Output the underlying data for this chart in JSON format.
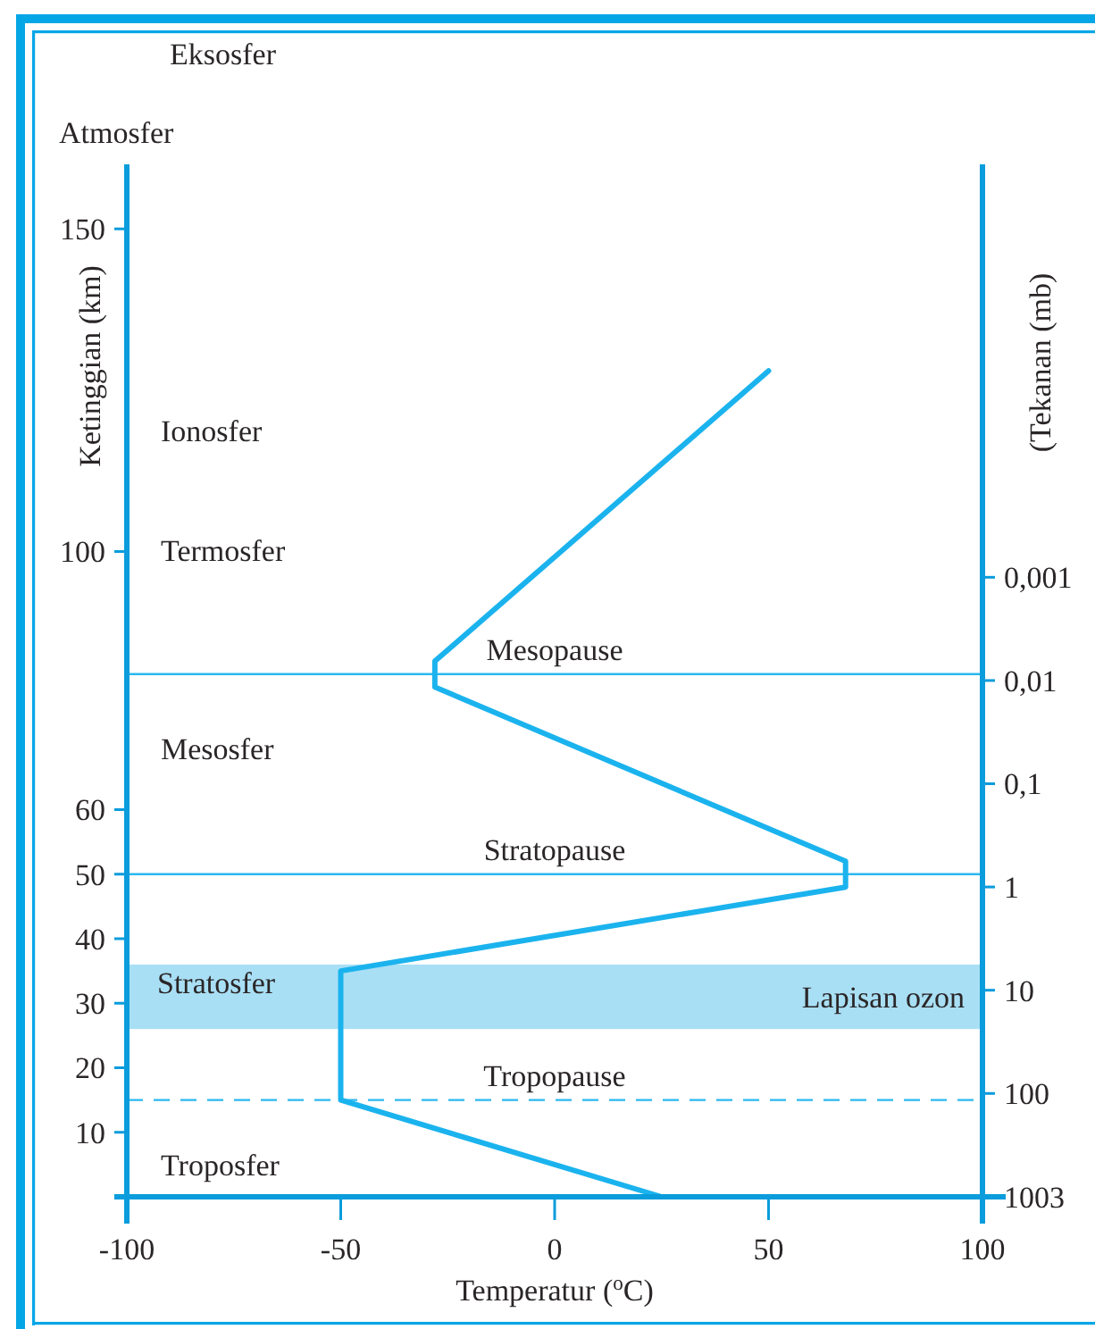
{
  "chart_data": {
    "type": "line",
    "xlabel": "Temperatur ($^{o}$C)",
    "ylabel": "Ketinggian (km)",
    "y2label": "(Tekanan (mb)",
    "xlim": [
      -100,
      100
    ],
    "xticks": [
      -100,
      -50,
      0,
      50,
      100
    ],
    "ylim": [
      0,
      160
    ],
    "yticks": [
      10,
      20,
      30,
      40,
      50,
      60,
      100,
      150
    ],
    "y2lim": [
      1003,
      1e-07
    ],
    "y2ticks": [
      1003,
      100,
      10,
      1,
      {
        "value": 0.1,
        "label": "0,1"
      },
      {
        "value": 0.01,
        "label": "0,01"
      },
      {
        "value": 0.001,
        "label": "0,001"
      }
    ],
    "log": "y2",
    "series": [
      {
        "color": "#1bb3ee",
        "x": [
          25,
          -50,
          -50,
          68,
          68,
          -28,
          -28,
          50
        ],
        "values": [
          0,
          15,
          35,
          48,
          52,
          79,
          83,
          128
        ]
      }
    ],
    "ref_lines": [
      {
        "axis": "y",
        "value": 81,
        "label": "Mesopause",
        "color": "#2bb8ef"
      },
      {
        "axis": "y",
        "value": 50,
        "label": "Stratopause",
        "color": "#2bb8ef"
      },
      {
        "axis": "y",
        "value": 15,
        "label": "Tropopause",
        "color": "#2bb8ef",
        "line_style": "dashed"
      }
    ],
    "bands": [
      {
        "axis": "y",
        "from": 26,
        "to": 36,
        "label": "Lapisan ozon",
        "color": "#a9dff5"
      }
    ],
    "annotations": [
      "Eksosfer",
      "Atmosfer",
      "Ionosfer",
      "Termosfer",
      "Mesosfer",
      "Stratosfer",
      "Troposfer"
    ]
  }
}
